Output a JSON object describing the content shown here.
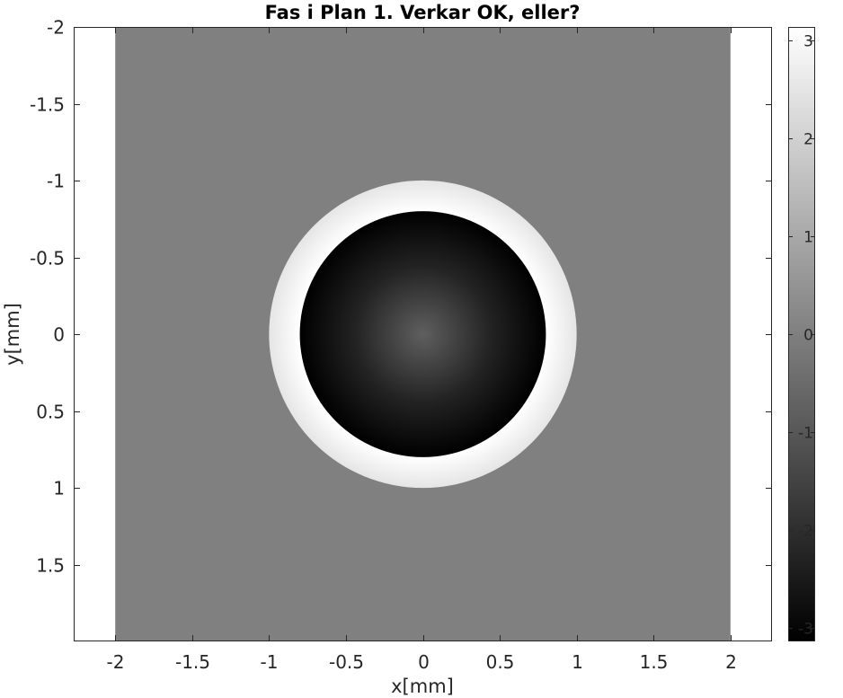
{
  "chart_data": {
    "type": "heatmap",
    "title": "Fas i Plan 1. Verkar OK, eller?",
    "xlabel": "x[mm]",
    "ylabel": "y[mm]",
    "xlim": [
      -2.27,
      2.27
    ],
    "ylim": [
      -2,
      2
    ],
    "y_reversed": true,
    "x_ticks": [
      {
        "value": -2,
        "label": "-2"
      },
      {
        "value": -1.5,
        "label": "-1.5"
      },
      {
        "value": -1,
        "label": "-1"
      },
      {
        "value": -0.5,
        "label": "-0.5"
      },
      {
        "value": 0,
        "label": "0"
      },
      {
        "value": 0.5,
        "label": "0.5"
      },
      {
        "value": 1,
        "label": "1"
      },
      {
        "value": 1.5,
        "label": "1.5"
      },
      {
        "value": 2,
        "label": "2"
      }
    ],
    "y_ticks": [
      {
        "value": -2,
        "label": "-2"
      },
      {
        "value": -1.5,
        "label": "-1.5"
      },
      {
        "value": -1,
        "label": "-1"
      },
      {
        "value": -0.5,
        "label": "-0.5"
      },
      {
        "value": 0,
        "label": "0"
      },
      {
        "value": 0.5,
        "label": "0.5"
      },
      {
        "value": 1,
        "label": "1"
      },
      {
        "value": 1.5,
        "label": "1.5"
      }
    ],
    "image_extent": {
      "x": [
        -2,
        2
      ],
      "y": [
        -2,
        2
      ]
    },
    "colormap": "gray",
    "clim": [
      -3.14159,
      3.14159
    ],
    "colorbar": {
      "ticks": [
        {
          "value": 3,
          "label": "3"
        },
        {
          "value": 2,
          "label": "2"
        },
        {
          "value": 1,
          "label": "1"
        },
        {
          "value": 0,
          "label": "0"
        },
        {
          "value": -1,
          "label": "-1"
        },
        {
          "value": -2,
          "label": "-2"
        },
        {
          "value": -3,
          "label": "-3"
        }
      ]
    },
    "field": {
      "background_phase": 0,
      "outer_radius_mm": 1.0,
      "inner_radius_mm": 0.8,
      "ring_phase_at_outer": 2.5,
      "ring_phase_at_inner": 3.14,
      "disk_phase_at_center": -0.8,
      "disk_phase_at_edge": -3.14
    },
    "grid": false,
    "colors": {
      "axis": "#262626",
      "background": "#808080"
    }
  }
}
